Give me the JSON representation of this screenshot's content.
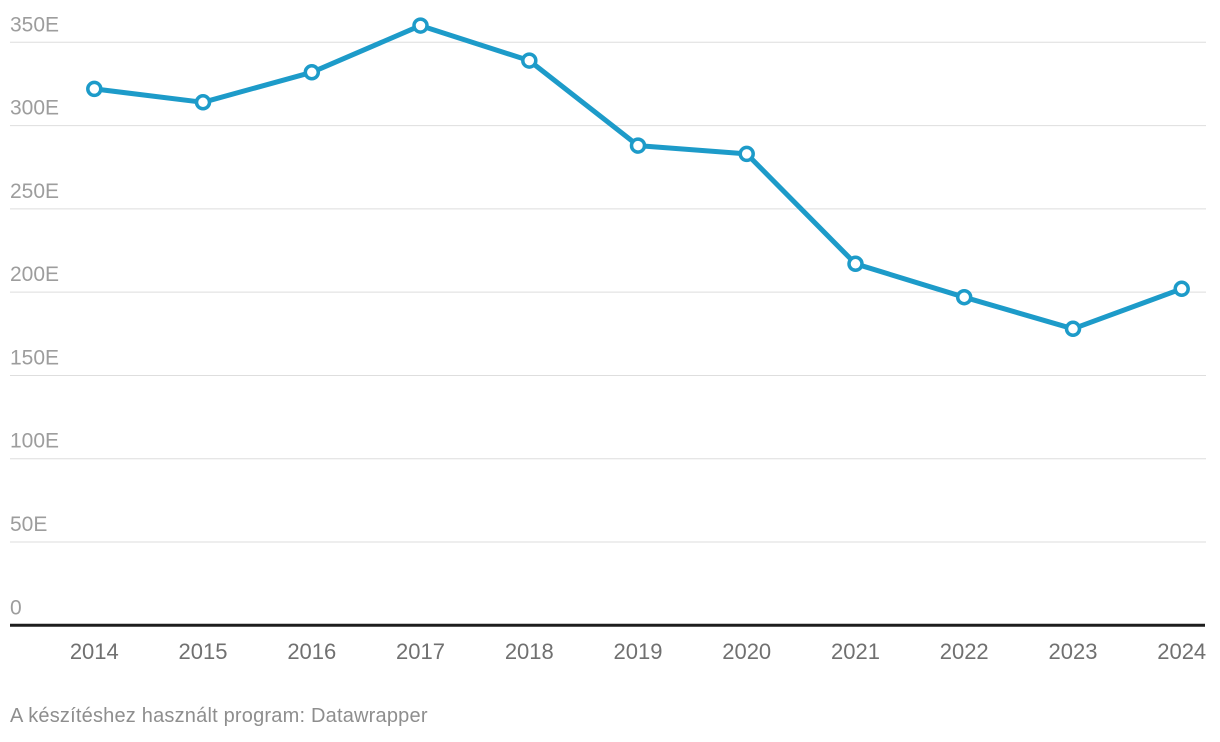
{
  "chart_data": {
    "type": "line",
    "x": [
      2014,
      2015,
      2016,
      2017,
      2018,
      2019,
      2020,
      2021,
      2022,
      2023,
      2024
    ],
    "values": [
      322,
      314,
      332,
      360,
      339,
      288,
      283,
      217,
      197,
      178,
      202
    ],
    "unit_suffix": "E",
    "title": "",
    "xlabel": "",
    "ylabel": "",
    "ylim": [
      0,
      350
    ],
    "ytick_step": 50,
    "yticks": [
      0,
      50,
      100,
      150,
      200,
      250,
      300,
      350
    ],
    "ytick_labels": [
      "0",
      "50E",
      "100E",
      "150E",
      "200E",
      "250E",
      "300E",
      "350E"
    ],
    "xtick_labels": [
      "2014",
      "2015",
      "2016",
      "2017",
      "2018",
      "2019",
      "2020",
      "2021",
      "2022",
      "2023",
      "2024"
    ],
    "grid": true,
    "legend": "none",
    "line_color": "#1d9bc9",
    "marker_style": "open-circle",
    "grid_color": "#dedede",
    "baseline_color": "#1d1d1d",
    "ytick_label_color": "#9d9d9d",
    "xtick_label_color": "#707070"
  },
  "footer": {
    "attribution": "A készítéshez használt program: Datawrapper"
  }
}
